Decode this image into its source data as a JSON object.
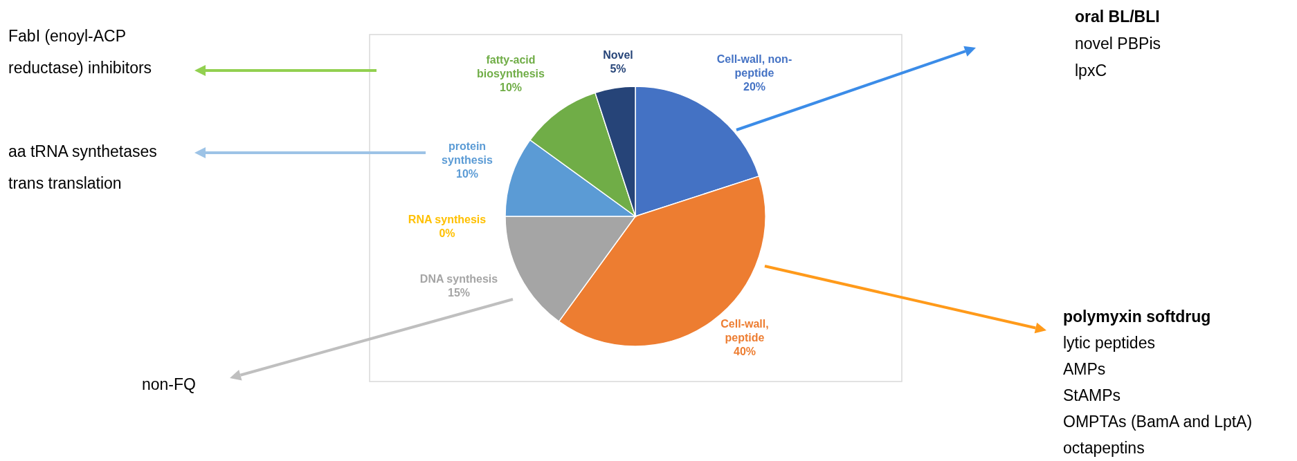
{
  "chart_data": {
    "type": "pie",
    "categories": [
      "Cell-wall, non-peptide",
      "Cell-wall, peptide",
      "DNA synthesis",
      "RNA synthesis",
      "protein synthesis",
      "fatty-acid biosynthesis",
      "Novel"
    ],
    "values": [
      20,
      40,
      15,
      0,
      10,
      10,
      5
    ],
    "colors": [
      "#4472c4",
      "#ed7d31",
      "#a5a5a5",
      "#ffc000",
      "#5b9bd5",
      "#70ad47",
      "#264478"
    ],
    "value_labels": [
      "20%",
      "40%",
      "15%",
      "0%",
      "10%",
      "10%",
      "5%"
    ],
    "legend": false,
    "annotations": [
      "FabI (enoyl-ACP\nreductase) inhibitors",
      "aa tRNA synthetases\ntrans translation",
      "oral BL/BLI\nnovel PBPis\nlpxC",
      "polymyxin softdrug\nlytic peptides\nAMPs\nStAMPs\nOMPTAs (BamA and LptA)\noctapeptins",
      "non-FQ"
    ]
  }
}
